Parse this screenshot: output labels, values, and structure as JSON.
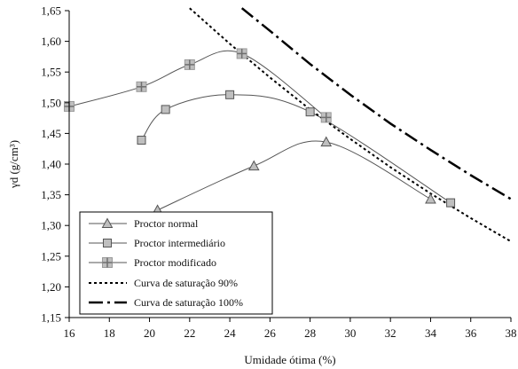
{
  "chart_data": {
    "type": "line",
    "xlabel": "Umidade ótima (%)",
    "ylabel": "γd (g/cm³)",
    "xlim": [
      16,
      38
    ],
    "ylim": [
      1.15,
      1.65
    ],
    "x_ticks": [
      "16",
      "18",
      "20",
      "22",
      "24",
      "26",
      "28",
      "30",
      "32",
      "34",
      "36",
      "38"
    ],
    "y_ticks": [
      "1,15",
      "1,20",
      "1,25",
      "1,30",
      "1,35",
      "1,40",
      "1,45",
      "1,50",
      "1,55",
      "1,60",
      "1,65"
    ],
    "grid": false,
    "legend_position": "bottom-left",
    "colors": {
      "line": "#555555",
      "marker_fill": "#bfbfbf",
      "axis": "#000000",
      "background": "#ffffff"
    },
    "series": [
      {
        "name": "Proctor normal",
        "marker": "triangle",
        "points": [
          [
            20.4,
            1.325
          ],
          [
            25.2,
            1.397
          ],
          [
            28.8,
            1.436
          ],
          [
            34.0,
            1.343
          ]
        ]
      },
      {
        "name": "Proctor intermediário",
        "marker": "square",
        "points": [
          [
            19.6,
            1.439
          ],
          [
            20.8,
            1.489
          ],
          [
            24.0,
            1.513
          ],
          [
            28.0,
            1.485
          ],
          [
            35.0,
            1.337
          ]
        ]
      },
      {
        "name": "Proctor modificado",
        "marker": "square-cross",
        "points": [
          [
            16.0,
            1.494
          ],
          [
            19.6,
            1.526
          ],
          [
            22.0,
            1.562
          ],
          [
            24.6,
            1.58
          ],
          [
            28.8,
            1.476
          ]
        ]
      },
      {
        "name": "Curva de saturação 90%",
        "style": "dotted",
        "points": [
          [
            22.0,
            1.654
          ],
          [
            24.0,
            1.596
          ],
          [
            26.0,
            1.541
          ],
          [
            28.0,
            1.489
          ],
          [
            30.0,
            1.441
          ],
          [
            32.0,
            1.395
          ],
          [
            34.0,
            1.352
          ],
          [
            36.0,
            1.312
          ],
          [
            38.0,
            1.274
          ]
        ]
      },
      {
        "name": "Curva de saturação 100%",
        "style": "dash-dot",
        "points": [
          [
            24.6,
            1.654
          ],
          [
            26.0,
            1.617
          ],
          [
            28.0,
            1.563
          ],
          [
            30.0,
            1.513
          ],
          [
            32.0,
            1.466
          ],
          [
            34.0,
            1.423
          ],
          [
            36.0,
            1.382
          ],
          [
            38.0,
            1.343
          ]
        ]
      }
    ]
  }
}
